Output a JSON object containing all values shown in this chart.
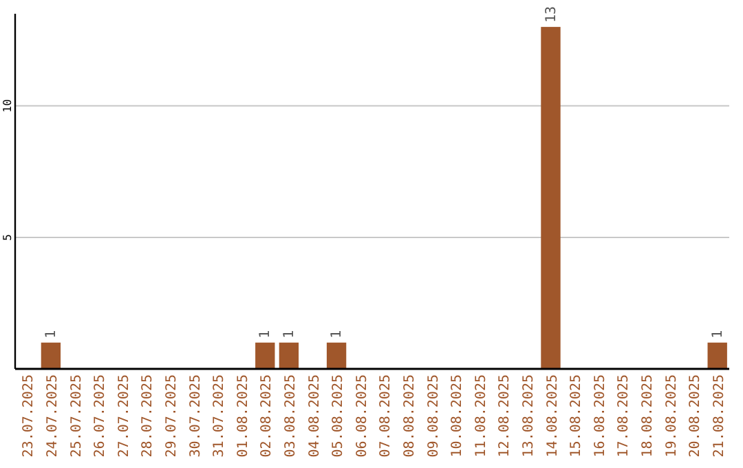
{
  "chart_data": {
    "type": "bar",
    "categories": [
      "23.07.2025",
      "24.07.2025",
      "25.07.2025",
      "26.07.2025",
      "27.07.2025",
      "28.07.2025",
      "29.07.2025",
      "30.07.2025",
      "31.07.2025",
      "01.08.2025",
      "02.08.2025",
      "03.08.2025",
      "04.08.2025",
      "05.08.2025",
      "06.08.2025",
      "07.08.2025",
      "08.08.2025",
      "09.08.2025",
      "10.08.2025",
      "11.08.2025",
      "12.08.2025",
      "13.08.2025",
      "14.08.2025",
      "15.08.2025",
      "16.08.2025",
      "17.08.2025",
      "18.08.2025",
      "19.08.2025",
      "20.08.2025",
      "21.08.2025"
    ],
    "values": [
      0,
      1,
      0,
      0,
      0,
      0,
      0,
      0,
      0,
      0,
      1,
      1,
      0,
      1,
      0,
      0,
      0,
      0,
      0,
      0,
      0,
      0,
      13,
      0,
      0,
      0,
      0,
      0,
      0,
      1
    ],
    "value_labels": [
      null,
      "1",
      null,
      null,
      null,
      null,
      null,
      null,
      null,
      null,
      "1",
      "1",
      null,
      "1",
      null,
      null,
      null,
      null,
      null,
      null,
      null,
      null,
      "13",
      null,
      null,
      null,
      null,
      null,
      null,
      "1"
    ],
    "color": "#a0572b",
    "ylim": [
      0,
      13.5
    ],
    "yticks": [
      5,
      10
    ],
    "grid": "y"
  }
}
